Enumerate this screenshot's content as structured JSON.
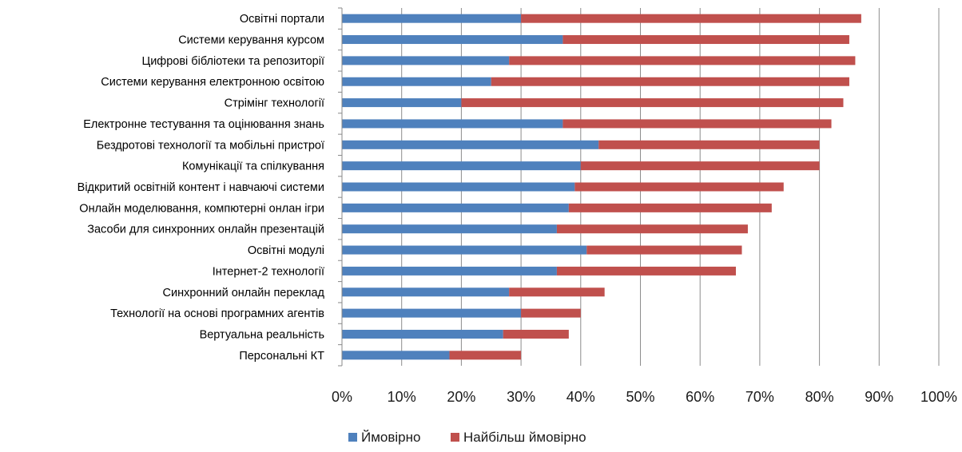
{
  "chart_data": {
    "type": "bar",
    "orientation": "horizontal",
    "stacked": true,
    "title": "",
    "xlabel": "",
    "ylabel": "",
    "xlim": [
      0,
      100
    ],
    "x_ticks": [
      "0%",
      "10%",
      "20%",
      "30%",
      "40%",
      "50%",
      "60%",
      "70%",
      "80%",
      "90%",
      "100%"
    ],
    "grid": true,
    "legend_position": "bottom",
    "categories": [
      "Освітні портали",
      "Системи керування курсом",
      "Цифрові бібліотеки та репозиторії",
      "Системи керування електронною освітою",
      "Стрімінг технології",
      "Електронне тестування та оцінювання знань",
      "Бездротові технології та мобільні пристрої",
      "Комунікації та спілкування",
      "Відкритий освітній контент і навчаючі системи",
      "Онлайн моделювання, компютерні онлан ігри",
      "Засоби для синхронних онлайн презентацій",
      "Освітні модулі",
      "Інтернет-2 технології",
      "Синхронний онлайн переклад",
      "Технології на основі програмних агентів",
      "Вертуальна реальність",
      "Персональні КТ"
    ],
    "series": [
      {
        "name": "Ймовірно",
        "color": "#4F81BD",
        "values": [
          30,
          37,
          28,
          25,
          20,
          37,
          43,
          40,
          39,
          38,
          36,
          41,
          36,
          28,
          30,
          27,
          18
        ]
      },
      {
        "name": "Найбільш ймовірно",
        "color": "#C0504D",
        "values": [
          57,
          48,
          58,
          60,
          64,
          45,
          37,
          40,
          35,
          34,
          32,
          26,
          30,
          16,
          10,
          11,
          12
        ]
      }
    ]
  }
}
